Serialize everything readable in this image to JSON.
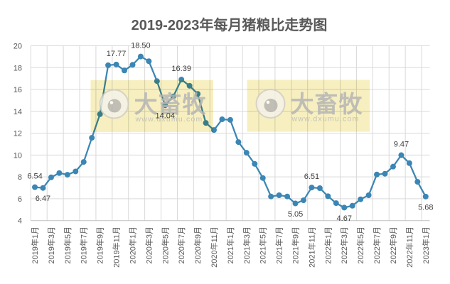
{
  "chart_data": {
    "type": "line",
    "title": "2019-2023年每月猪粮比走势图",
    "xlabel": "",
    "ylabel": "",
    "ylim": [
      4,
      20
    ],
    "y_ticks": [
      4,
      6,
      8,
      10,
      12,
      14,
      16,
      18,
      20
    ],
    "grid": true,
    "legend": "none",
    "categories": [
      "2019年1月",
      "2019年2月",
      "2019年3月",
      "2019年4月",
      "2019年5月",
      "2019年6月",
      "2019年7月",
      "2019年8月",
      "2019年9月",
      "2019年10月",
      "2019年11月",
      "2019年12月",
      "2020年1月",
      "2020年2月",
      "2020年3月",
      "2020年4月",
      "2020年5月",
      "2020年6月",
      "2020年7月",
      "2020年8月",
      "2020年9月",
      "2020年10月",
      "2020年11月",
      "2020年12月",
      "2021年1月",
      "2021年2月",
      "2021年3月",
      "2021年4月",
      "2021年5月",
      "2021年6月",
      "2021年7月",
      "2021年8月",
      "2021年9月",
      "2021年10月",
      "2021年11月",
      "2021年12月",
      "2022年1月",
      "2022年2月",
      "2022年3月",
      "2022年4月",
      "2022年5月",
      "2022年6月",
      "2022年7月",
      "2022年8月",
      "2022年9月",
      "2022年10月",
      "2022年11月",
      "2022年12月",
      "2023年1月"
    ],
    "x_tick_labels": [
      "2019年1月",
      "2019年3月",
      "2019年5月",
      "2019年7月",
      "2019年9月",
      "2019年11月",
      "2020年1月",
      "2020年3月",
      "2020年5月",
      "2020年7月",
      "2020年9月",
      "2020年11月",
      "2021年1月",
      "2021年3月",
      "2021年5月",
      "2021年7月",
      "2021年9月",
      "2021年11月",
      "2022年1月",
      "2022年3月",
      "2022年5月",
      "2022年7月",
      "2022年9月",
      "2022年11月",
      "2023年1月"
    ],
    "values": [
      6.54,
      6.47,
      7.44,
      7.83,
      7.68,
      7.98,
      8.85,
      11.06,
      13.22,
      17.7,
      17.77,
      17.22,
      17.74,
      18.5,
      18.07,
      16.25,
      14.04,
      14.84,
      16.39,
      15.82,
      15.08,
      12.42,
      11.77,
      12.75,
      12.7,
      10.67,
      9.69,
      8.67,
      7.38,
      5.69,
      5.8,
      5.69,
      5.05,
      5.34,
      6.51,
      6.45,
      5.71,
      5.08,
      4.67,
      4.84,
      5.43,
      5.8,
      7.7,
      7.77,
      8.42,
      9.47,
      8.74,
      7.03,
      5.68
    ],
    "data_labels": [
      {
        "index": 0,
        "category": "2019年1月",
        "text": "6.54",
        "position": "above"
      },
      {
        "index": 1,
        "category": "2019年2月",
        "text": "6.47",
        "position": "below"
      },
      {
        "index": 10,
        "category": "2019年11月",
        "text": "17.77",
        "position": "above"
      },
      {
        "index": 13,
        "category": "2020年2月",
        "text": "18.50",
        "position": "above"
      },
      {
        "index": 16,
        "category": "2020年5月",
        "text": "14.04",
        "position": "below"
      },
      {
        "index": 18,
        "category": "2020年7月",
        "text": "16.39",
        "position": "above"
      },
      {
        "index": 32,
        "category": "2021年9月",
        "text": "5.05",
        "position": "below"
      },
      {
        "index": 34,
        "category": "2021年11月",
        "text": "6.51",
        "position": "above"
      },
      {
        "index": 38,
        "category": "2022年3月",
        "text": "4.67",
        "position": "below"
      },
      {
        "index": 45,
        "category": "2022年10月",
        "text": "9.47",
        "position": "above"
      },
      {
        "index": 48,
        "category": "2023年1月",
        "text": "5.68",
        "position": "below"
      }
    ]
  },
  "watermarks": [
    {
      "brand": "大畜牧",
      "url": "www.dxumu.com"
    },
    {
      "brand": "大畜牧",
      "url": "www.dxumu.com"
    }
  ],
  "colors": {
    "line": "#3b86b4",
    "grid": "#d9d9d9",
    "axis": "#bfbfbf",
    "axis_text": "#595959",
    "label_text": "#404040",
    "title_text": "#595959",
    "watermark_bg": "#f7efc0",
    "watermark_text": "#b5b5b5"
  }
}
